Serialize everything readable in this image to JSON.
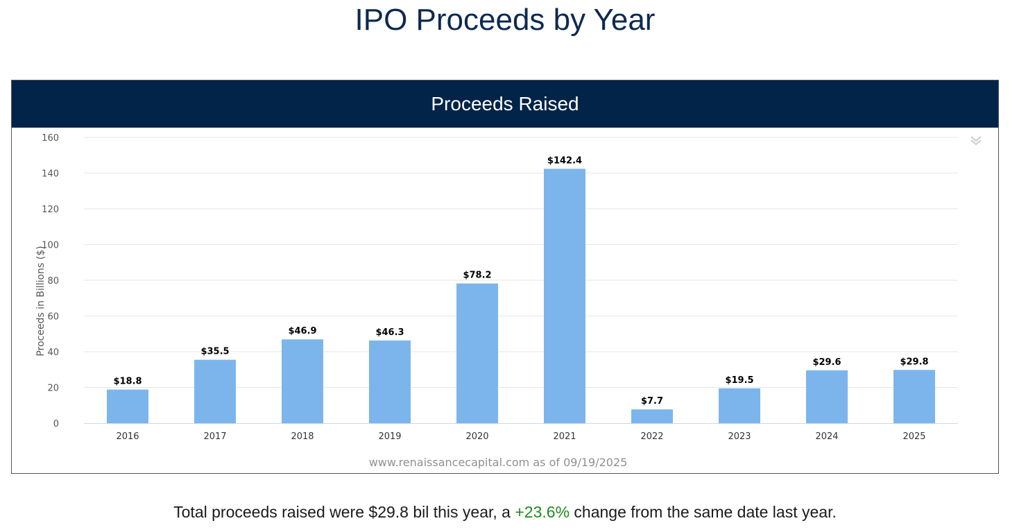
{
  "page": {
    "title": "IPO Proceeds by Year"
  },
  "chart_data": {
    "type": "bar",
    "title": "Proceeds Raised",
    "categories": [
      "2016",
      "2017",
      "2018",
      "2019",
      "2020",
      "2021",
      "2022",
      "2023",
      "2024",
      "2025"
    ],
    "values": [
      18.8,
      35.5,
      46.9,
      46.3,
      78.2,
      142.4,
      7.7,
      19.5,
      29.6,
      29.8
    ],
    "data_labels": [
      "$18.8",
      "$35.5",
      "$46.9",
      "$46.3",
      "$78.2",
      "$142.4",
      "$7.7",
      "$19.5",
      "$29.6",
      "$29.8"
    ],
    "xlabel": "",
    "ylabel": "Proceeds in Billions ($)",
    "ylim": [
      0,
      160
    ],
    "yticks": [
      0,
      20,
      40,
      60,
      80,
      100,
      120,
      140,
      160
    ],
    "grid": true,
    "bar_color": "#7cb5ec",
    "credit": "www.renaissancecapital.com as of 09/19/2025"
  },
  "chart_menu": {
    "icon": "chevron-double-down-icon"
  },
  "summary": {
    "prefix": "Total proceeds raised were $29.8 bil this year, a ",
    "change": "+23.6%",
    "suffix": " change from the same date last year.",
    "change_color": "#1f8a1f"
  },
  "colors": {
    "header_bg": "#012448",
    "title_text": "#0d2a4f"
  }
}
